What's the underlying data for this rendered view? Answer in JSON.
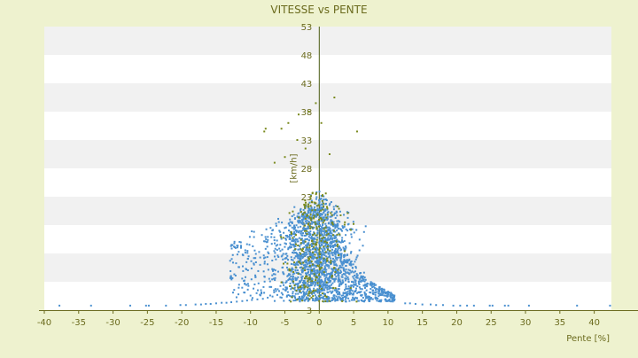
{
  "chart_data": {
    "type": "scatter",
    "title": "VITESSE vs PENTE",
    "xlabel": "Pente [%]",
    "ylabel": "[km/h]",
    "xlim": [
      -40,
      42.5
    ],
    "ylim": [
      3,
      53
    ],
    "x_ticks": [
      -40,
      -35,
      -30,
      -25,
      -20,
      -15,
      -10,
      -5,
      0,
      5,
      10,
      15,
      20,
      25,
      30,
      35,
      40
    ],
    "x_tick_labels": [
      "-40",
      "-35",
      "-30",
      "-25",
      "-20",
      "-15",
      "-10",
      "-5",
      "0",
      "5",
      "10",
      "15",
      "20",
      "25",
      "30",
      "35",
      "40"
    ],
    "y_ticks": [
      3,
      8,
      13,
      18,
      23,
      28,
      33,
      38,
      43,
      48,
      53
    ],
    "y_tick_labels": [
      "3",
      "8",
      "13",
      "18",
      "23",
      "28",
      "33",
      "38",
      "43",
      "48",
      "53"
    ],
    "grid": "horizontal-bands",
    "legend": "none",
    "series": [
      {
        "color": "#4a90d0",
        "description_points": "speed vs slope samples",
        "points": [
          [
            -37.8,
            3.8
          ],
          [
            -33.2,
            3.8
          ],
          [
            -27.5,
            3.8
          ],
          [
            -25.2,
            3.8
          ],
          [
            -24.8,
            3.8
          ],
          [
            -22.3,
            3.8
          ],
          [
            -20.2,
            3.9
          ],
          [
            -19.4,
            3.9
          ],
          [
            -18.0,
            4.0
          ],
          [
            -17.2,
            4.0
          ],
          [
            -16.5,
            4.1
          ],
          [
            -15.8,
            4.1
          ],
          [
            -15.0,
            4.2
          ],
          [
            -14.2,
            4.3
          ],
          [
            -13.5,
            4.3
          ],
          [
            -12.8,
            4.4
          ],
          [
            -12.0,
            4.5
          ],
          [
            -11.2,
            4.6
          ],
          [
            -10.5,
            4.7
          ],
          [
            -9.8,
            4.8
          ],
          [
            -9.0,
            4.9
          ],
          [
            -8.2,
            5.0
          ],
          [
            -7.5,
            5.2
          ],
          [
            -6.8,
            5.4
          ],
          [
            12.5,
            4.2
          ],
          [
            13.2,
            4.2
          ],
          [
            14.0,
            4.1
          ],
          [
            15.0,
            4.0
          ],
          [
            16.2,
            4.0
          ],
          [
            17.0,
            3.9
          ],
          [
            18.0,
            3.9
          ],
          [
            19.5,
            3.8
          ],
          [
            20.5,
            3.8
          ],
          [
            21.5,
            3.8
          ],
          [
            22.5,
            3.8
          ],
          [
            24.8,
            3.8
          ],
          [
            25.2,
            3.8
          ],
          [
            27.0,
            3.8
          ],
          [
            27.5,
            3.8
          ],
          [
            30.5,
            3.8
          ],
          [
            37.5,
            3.8
          ],
          [
            42.3,
            3.8
          ]
        ]
      },
      {
        "color": "#7a8a1e",
        "points": [
          [
            -4.5,
            36.0
          ],
          [
            -5.5,
            35.0
          ],
          [
            -3.0,
            37.5
          ],
          [
            -1.5,
            38.0
          ],
          [
            -0.5,
            39.5
          ],
          [
            0.3,
            36.0
          ],
          [
            2.2,
            40.5
          ],
          [
            5.5,
            34.5
          ],
          [
            -7.8,
            35.0
          ],
          [
            -8.0,
            34.5
          ],
          [
            -3.2,
            33.0
          ],
          [
            -2.0,
            31.5
          ],
          [
            1.5,
            30.5
          ],
          [
            -5.0,
            30.0
          ],
          [
            -6.5,
            29.0
          ]
        ]
      }
    ]
  }
}
